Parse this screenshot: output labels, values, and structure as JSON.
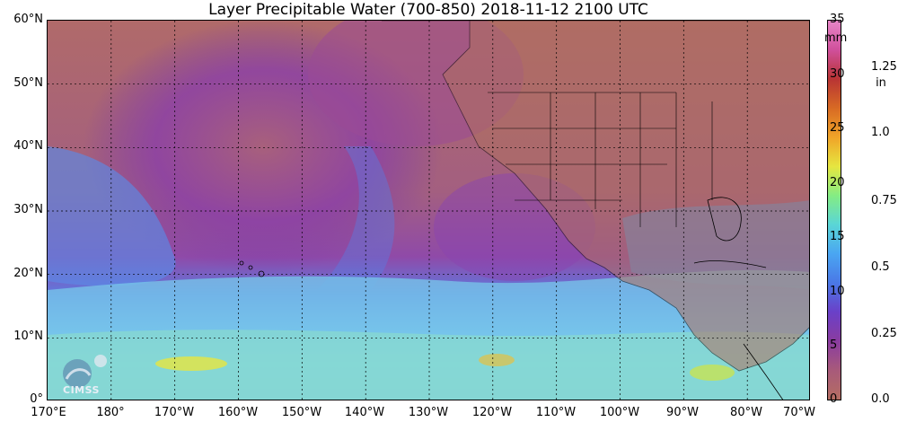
{
  "title": "Layer Precipitable Water (700-850)  2018-11-12 2100 UTC",
  "lat_labels": [
    "60°N",
    "50°N",
    "40°N",
    "30°N",
    "20°N",
    "10°N",
    "0°"
  ],
  "lon_labels": [
    "170°E",
    "180°",
    "170°W",
    "160°W",
    "150°W",
    "140°W",
    "130°W",
    "120°W",
    "110°W",
    "100°W",
    "90°W",
    "80°W",
    "70°W"
  ],
  "colorbar": {
    "mm_unit": "mm",
    "in_unit": "in",
    "mm_ticks": [
      "35",
      "30",
      "25",
      "20",
      "15",
      "10",
      "5",
      "0"
    ],
    "in_ticks": [
      "1.25",
      "1.0",
      "0.75",
      "0.5",
      "0.25",
      "0.0"
    ],
    "colors": [
      "#b46e62",
      "#a85a7a",
      "#8a3ca0",
      "#6a40c8",
      "#4a78e6",
      "#4aa6f2",
      "#5ad6d6",
      "#84ec84",
      "#e6e640",
      "#f0a428",
      "#d86a24",
      "#b83434",
      "#d0509c",
      "#e886c8"
    ]
  },
  "logo_text": "CIMSS"
}
